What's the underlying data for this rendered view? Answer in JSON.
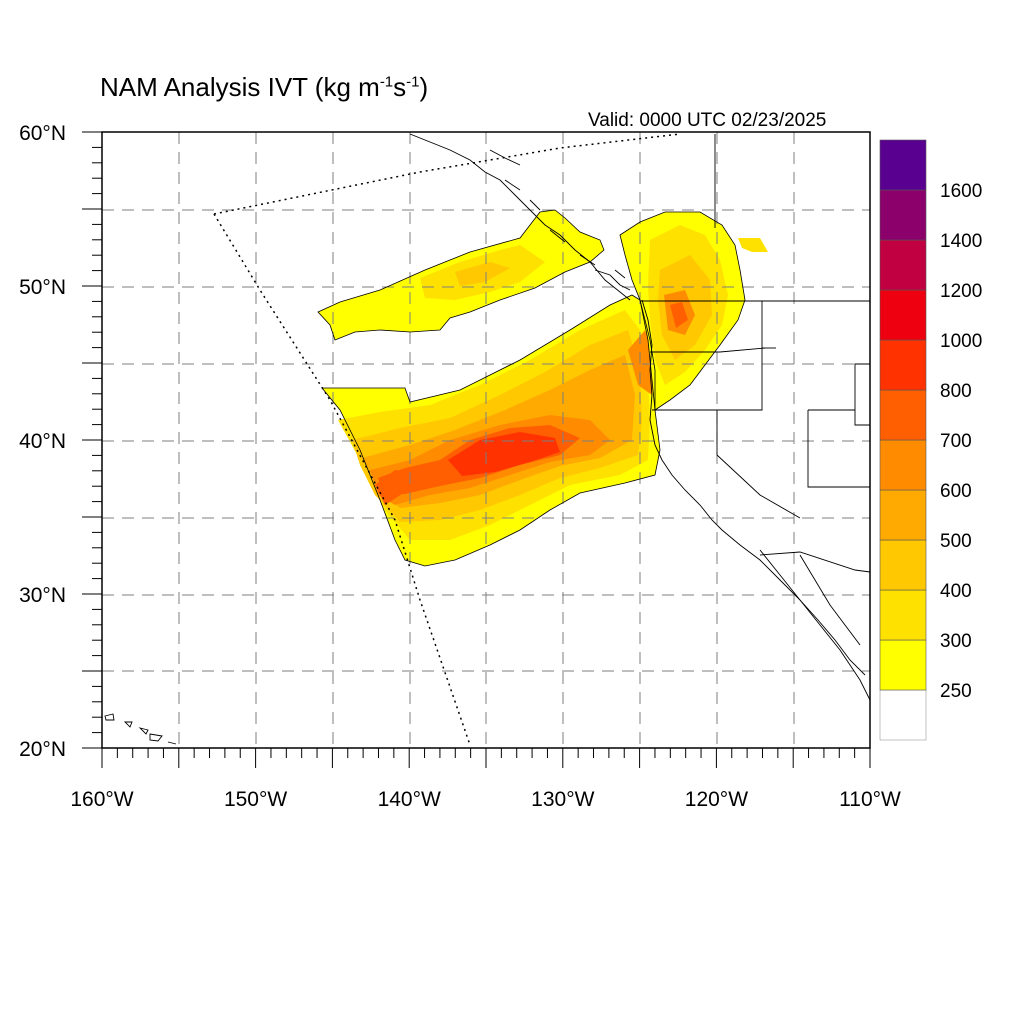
{
  "title": {
    "main": "NAM Analysis IVT (kg m",
    "exp1": "-1",
    "mid": "s",
    "exp2": "-1",
    "close": ")"
  },
  "valid_label": "Valid: 0000 UTC 02/23/2025",
  "axes": {
    "lat_ticks": [
      {
        "value": 60,
        "label": "60°N"
      },
      {
        "value": 50,
        "label": "50°N"
      },
      {
        "value": 40,
        "label": "40°N"
      },
      {
        "value": 30,
        "label": "30°N"
      },
      {
        "value": 20,
        "label": "20°N"
      }
    ],
    "lon_ticks": [
      {
        "value": -160,
        "label": "160°W"
      },
      {
        "value": -150,
        "label": "150°W"
      },
      {
        "value": -140,
        "label": "140°W"
      },
      {
        "value": -130,
        "label": "130°W"
      },
      {
        "value": -120,
        "label": "120°W"
      },
      {
        "value": -110,
        "label": "110°W"
      }
    ],
    "lat_range": [
      20,
      60
    ],
    "lon_range": [
      -160,
      -110
    ],
    "grid_interval_deg": 5
  },
  "colorbar": {
    "levels": [
      "250",
      "300",
      "400",
      "500",
      "600",
      "700",
      "800",
      "1000",
      "1200",
      "1400",
      "1600"
    ],
    "colors": [
      "#ffffff",
      "#ffff00",
      "#ffe100",
      "#ffc800",
      "#ffaa00",
      "#ff8c00",
      "#ff5f00",
      "#ff3200",
      "#ee0010",
      "#c00040",
      "#8b006a",
      "#5a0090"
    ]
  }
}
